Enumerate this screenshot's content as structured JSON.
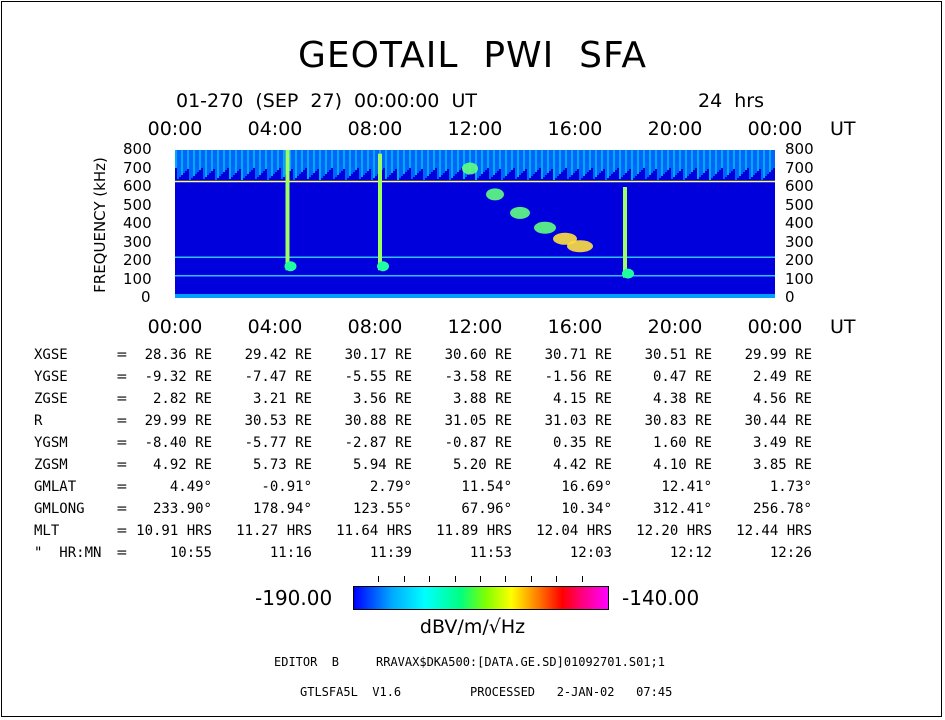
{
  "header": {
    "title": "GEOTAIL  PWI  SFA",
    "date_line": "01-270  (SEP  27)  00:00:00  UT",
    "duration": "24  hrs"
  },
  "time_axis": {
    "ticks": [
      "00:00",
      "04:00",
      "08:00",
      "12:00",
      "16:00",
      "20:00",
      "00:00"
    ],
    "unit": "UT"
  },
  "chart_data": {
    "type": "heatmap",
    "title": "GEOTAIL  PWI  SFA",
    "xlabel": "UT",
    "ylabel": "FREQUENCY (kHz)",
    "x_ticks": [
      "00:00",
      "04:00",
      "08:00",
      "12:00",
      "16:00",
      "20:00",
      "00:00"
    ],
    "xlim_hours": [
      0,
      24
    ],
    "y_ticks": [
      800,
      700,
      600,
      500,
      400,
      300,
      200,
      100,
      0
    ],
    "ylim": [
      0,
      800
    ],
    "colorbar": {
      "min": -190.0,
      "max": -140.0,
      "label": "dBV/m/√Hz"
    },
    "colors": {
      "background": "#0000dd",
      "low": "#0000ff",
      "mid": "#00ffff",
      "high": "#ff00ff"
    },
    "features": [
      {
        "type": "vertical_burst",
        "t_hours": 4.5,
        "f_top": 800,
        "f_bottom": 150
      },
      {
        "type": "vertical_burst",
        "t_hours": 8.2,
        "f_top": 780,
        "f_bottom": 150
      },
      {
        "type": "vertical_burst",
        "t_hours": 18.0,
        "f_top": 600,
        "f_bottom": 110
      },
      {
        "type": "horizontal_line",
        "freq": 630
      },
      {
        "type": "horizontal_line",
        "freq": 220
      },
      {
        "type": "horizontal_line",
        "freq": 120
      }
    ]
  },
  "orbit": {
    "rows": [
      {
        "label": "XGSE",
        "values": [
          "28.36 RE",
          "29.42 RE",
          "30.17 RE",
          "30.60 RE",
          "30.71 RE",
          "30.51 RE",
          "29.99 RE"
        ]
      },
      {
        "label": "YGSE",
        "values": [
          "-9.32 RE",
          "-7.47 RE",
          "-5.55 RE",
          "-3.58 RE",
          "-1.56 RE",
          "0.47 RE",
          "2.49 RE"
        ]
      },
      {
        "label": "ZGSE",
        "values": [
          "2.82 RE",
          "3.21 RE",
          "3.56 RE",
          "3.88 RE",
          "4.15 RE",
          "4.38 RE",
          "4.56 RE"
        ]
      },
      {
        "label": "R",
        "values": [
          "29.99 RE",
          "30.53 RE",
          "30.88 RE",
          "31.05 RE",
          "31.03 RE",
          "30.83 RE",
          "30.44 RE"
        ]
      },
      {
        "label": "YGSM",
        "values": [
          "-8.40 RE",
          "-5.77 RE",
          "-2.87 RE",
          "-0.87 RE",
          "0.35 RE",
          "1.60 RE",
          "3.49 RE"
        ]
      },
      {
        "label": "ZGSM",
        "values": [
          "4.92 RE",
          "5.73 RE",
          "5.94 RE",
          "5.20 RE",
          "4.42 RE",
          "4.10 RE",
          "3.85 RE"
        ]
      },
      {
        "label": "GMLAT",
        "values": [
          "4.49°",
          "-0.91°",
          "2.79°",
          "11.54°",
          "16.69°",
          "12.41°",
          "1.73°"
        ]
      },
      {
        "label": "GMLONG",
        "values": [
          "233.90°",
          "178.94°",
          "123.55°",
          "67.96°",
          "10.34°",
          "312.41°",
          "256.78°"
        ]
      },
      {
        "label": "MLT",
        "values": [
          "10.91 HRS",
          "11.27 HRS",
          "11.64 HRS",
          "11.89 HRS",
          "12.04 HRS",
          "12.20 HRS",
          "12.44 HRS"
        ]
      },
      {
        "label": "\"  HR:MN",
        "values": [
          "10:55",
          "11:16",
          "11:39",
          "11:53",
          "12:03",
          "12:12",
          "12:26"
        ]
      }
    ]
  },
  "colorbar": {
    "min_label": "-190.00",
    "max_label": "-140.00",
    "unit_label": "dBV/m/√Hz"
  },
  "footer": {
    "editor": "EDITOR  B",
    "path": "RRAVAX$DKA500:[DATA.GE.SD]01092701.S01;1",
    "program": "GTLSFA5L  V1.6",
    "processed": "PROCESSED   2-JAN-02   07:45"
  }
}
